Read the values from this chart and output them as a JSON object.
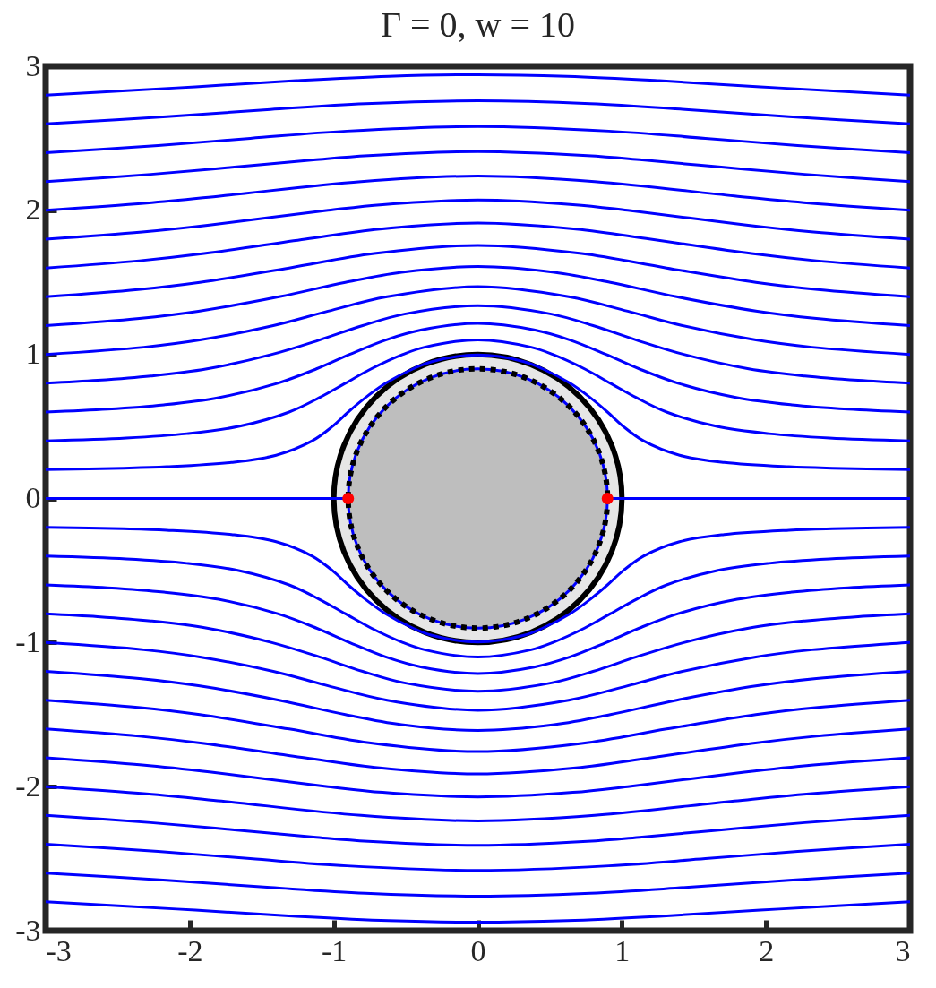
{
  "chart_data": {
    "type": "line",
    "title": "Γ = 0, w = 10",
    "xlim": [
      -3,
      3
    ],
    "ylim": [
      -3,
      3
    ],
    "xticks": [
      -3,
      -2,
      -1,
      0,
      1,
      2,
      3
    ],
    "yticks": [
      -3,
      -2,
      -1,
      0,
      1,
      2,
      3
    ],
    "grid": false,
    "line_style": "solid",
    "series": [
      {
        "color": "#0000ff",
        "x": [
          -3,
          -2.46,
          -2.16,
          -1.71,
          -1.4,
          -1.15,
          -1.01,
          -0.9,
          -0.78,
          -0.64,
          -0.45,
          -0.32,
          0,
          0.32,
          0.45,
          0.64,
          0.78,
          0.9,
          1.01,
          1.15,
          1.4,
          1.71,
          2.16,
          2.46,
          3
        ],
        "values": [
          0.2,
          0.21,
          0.22,
          0.25,
          0.3,
          0.4,
          0.5,
          0.6,
          0.7,
          0.8,
          0.9,
          0.95,
          0.996,
          0.95,
          0.9,
          0.8,
          0.7,
          0.6,
          0.5,
          0.4,
          0.3,
          0.25,
          0.22,
          0.21,
          0.2
        ]
      },
      {
        "color": "#0000ff",
        "x": [
          -3,
          -2.44,
          -2.02,
          -1.66,
          -1.31,
          -1.1,
          -0.92,
          -0.74,
          -0.52,
          -0.37,
          0,
          0.37,
          0.52,
          0.74,
          0.92,
          1.1,
          1.31,
          1.66,
          2.02,
          2.44,
          3
        ],
        "values": [
          0.4,
          0.42,
          0.45,
          0.5,
          0.6,
          0.7,
          0.8,
          0.9,
          1.0,
          1.05,
          1.101,
          1.05,
          1.0,
          0.9,
          0.8,
          0.7,
          0.6,
          0.5,
          0.45,
          0.42,
          0.4
        ]
      },
      {
        "color": "#0000ff",
        "x": [
          -3,
          -2.57,
          -2.18,
          -1.8,
          -1.39,
          -1.12,
          -0.89,
          -0.64,
          -0.39,
          0,
          0.39,
          0.64,
          0.89,
          1.12,
          1.39,
          1.8,
          2.18,
          2.57,
          3
        ],
        "values": [
          0.6,
          0.62,
          0.65,
          0.7,
          0.8,
          0.9,
          1.0,
          1.1,
          1.17,
          1.215,
          1.17,
          1.1,
          1.0,
          0.9,
          0.8,
          0.7,
          0.65,
          0.62,
          0.6
        ]
      },
      {
        "color": "#0000ff",
        "x": [
          -3,
          -2.64,
          -2.27,
          -1.88,
          -1.43,
          -1.1,
          -0.8,
          -0.51,
          0,
          0.51,
          0.8,
          1.1,
          1.43,
          1.88,
          2.27,
          2.64,
          3
        ],
        "values": [
          0.8,
          0.82,
          0.85,
          0.9,
          1.0,
          1.1,
          1.2,
          1.28,
          1.338,
          1.28,
          1.2,
          1.1,
          1.0,
          0.9,
          0.85,
          0.82,
          0.8
        ]
      },
      {
        "color": "#0000ff",
        "x": [
          -3,
          -2.32,
          -1.93,
          -1.42,
          -1.04,
          -0.63,
          0,
          0.63,
          1.04,
          1.42,
          1.93,
          2.32,
          3
        ],
        "values": [
          1.0,
          1.05,
          1.1,
          1.2,
          1.3,
          1.4,
          1.47,
          1.4,
          1.3,
          1.2,
          1.1,
          1.05,
          1.0
        ]
      },
      {
        "color": "#0000ff",
        "x": [
          -3,
          -2.35,
          -1.94,
          -1.38,
          -0.92,
          -0.53,
          0,
          0.53,
          0.92,
          1.38,
          1.94,
          2.35,
          3
        ],
        "values": [
          1.2,
          1.25,
          1.3,
          1.4,
          1.5,
          1.57,
          1.61,
          1.57,
          1.5,
          1.4,
          1.3,
          1.25,
          1.2
        ]
      },
      {
        "color": "#0000ff",
        "x": [
          -3,
          -2.36,
          -1.93,
          -1.31,
          -0.72,
          0,
          0.72,
          1.31,
          1.93,
          2.36,
          3
        ],
        "values": [
          1.4,
          1.45,
          1.5,
          1.6,
          1.7,
          1.757,
          1.7,
          1.6,
          1.5,
          1.45,
          1.4
        ]
      },
      {
        "color": "#0000ff",
        "x": [
          -3,
          -2.35,
          -1.9,
          -1.2,
          -0.68,
          0,
          0.68,
          1.2,
          1.9,
          2.35,
          3
        ],
        "values": [
          1.6,
          1.65,
          1.7,
          1.8,
          1.87,
          1.912,
          1.87,
          1.8,
          1.7,
          1.65,
          1.6
        ]
      },
      {
        "color": "#0000ff",
        "x": [
          -3,
          -2.33,
          -1.85,
          -1.04,
          -0.66,
          0,
          0.66,
          1.04,
          1.85,
          2.33,
          3
        ],
        "values": [
          1.8,
          1.85,
          1.9,
          2.0,
          2.04,
          2.072,
          2.04,
          2.0,
          1.9,
          1.85,
          1.8
        ]
      },
      {
        "color": "#0000ff",
        "x": [
          -3,
          -2.3,
          -1.78,
          -0.81,
          0,
          0.81,
          1.78,
          2.3,
          3
        ],
        "values": [
          2.0,
          2.05,
          2.1,
          2.2,
          2.238,
          2.2,
          2.1,
          2.05,
          2.0
        ]
      },
      {
        "color": "#0000ff",
        "x": [
          -3,
          -2.27,
          -1.69,
          -1.14,
          -0.76,
          0,
          0.76,
          1.14,
          1.69,
          2.27,
          3
        ],
        "values": [
          2.2,
          2.25,
          2.3,
          2.35,
          2.38,
          2.408,
          2.38,
          2.35,
          2.3,
          2.25,
          2.2
        ]
      },
      {
        "color": "#0000ff",
        "x": [
          -3,
          -2.22,
          -1.58,
          -0.91,
          0,
          0.91,
          1.58,
          2.22,
          3
        ],
        "values": [
          2.4,
          2.45,
          2.5,
          2.55,
          2.582,
          2.55,
          2.5,
          2.45,
          2.4
        ]
      },
      {
        "color": "#0000ff",
        "x": [
          -3,
          -2.16,
          -1.44,
          -0.78,
          0,
          0.78,
          1.44,
          2.16,
          3
        ],
        "values": [
          2.6,
          2.65,
          2.7,
          2.74,
          2.76,
          2.74,
          2.7,
          2.65,
          2.6
        ]
      },
      {
        "color": "#0000ff",
        "x": [
          -3,
          -2.09,
          -1.26,
          -0.62,
          0,
          0.62,
          1.26,
          2.09,
          3
        ],
        "values": [
          2.8,
          2.85,
          2.9,
          2.93,
          2.941,
          2.93,
          2.9,
          2.85,
          2.8
        ]
      },
      {
        "color": "#0000ff",
        "x": [
          -3,
          -2.46,
          -2.16,
          -1.71,
          -1.4,
          -1.15,
          -1.01,
          -0.9,
          -0.78,
          -0.64,
          -0.45,
          -0.32,
          0,
          0.32,
          0.45,
          0.64,
          0.78,
          0.9,
          1.01,
          1.15,
          1.4,
          1.71,
          2.16,
          2.46,
          3
        ],
        "values": [
          -0.2,
          -0.21,
          -0.22,
          -0.25,
          -0.3,
          -0.4,
          -0.5,
          -0.6,
          -0.7,
          -0.8,
          -0.9,
          -0.95,
          -0.996,
          -0.95,
          -0.9,
          -0.8,
          -0.7,
          -0.6,
          -0.5,
          -0.4,
          -0.3,
          -0.25,
          -0.22,
          -0.21,
          -0.2
        ]
      },
      {
        "color": "#0000ff",
        "x": [
          -3,
          -2.44,
          -2.02,
          -1.66,
          -1.31,
          -1.1,
          -0.92,
          -0.74,
          -0.52,
          -0.37,
          0,
          0.37,
          0.52,
          0.74,
          0.92,
          1.1,
          1.31,
          1.66,
          2.02,
          2.44,
          3
        ],
        "values": [
          -0.4,
          -0.42,
          -0.45,
          -0.5,
          -0.6,
          -0.7,
          -0.8,
          -0.9,
          -1.0,
          -1.05,
          -1.101,
          -1.05,
          -1.0,
          -0.9,
          -0.8,
          -0.7,
          -0.6,
          -0.5,
          -0.45,
          -0.42,
          -0.4
        ]
      },
      {
        "color": "#0000ff",
        "x": [
          -3,
          -2.57,
          -2.18,
          -1.8,
          -1.39,
          -1.12,
          -0.89,
          -0.64,
          -0.39,
          0,
          0.39,
          0.64,
          0.89,
          1.12,
          1.39,
          1.8,
          2.18,
          2.57,
          3
        ],
        "values": [
          -0.6,
          -0.62,
          -0.65,
          -0.7,
          -0.8,
          -0.9,
          -1.0,
          -1.1,
          -1.17,
          -1.215,
          -1.17,
          -1.1,
          -1.0,
          -0.9,
          -0.8,
          -0.7,
          -0.65,
          -0.62,
          -0.6
        ]
      },
      {
        "color": "#0000ff",
        "x": [
          -3,
          -2.64,
          -2.27,
          -1.88,
          -1.43,
          -1.1,
          -0.8,
          -0.51,
          0,
          0.51,
          0.8,
          1.1,
          1.43,
          1.88,
          2.27,
          2.64,
          3
        ],
        "values": [
          -0.8,
          -0.82,
          -0.85,
          -0.9,
          -1.0,
          -1.1,
          -1.2,
          -1.28,
          -1.338,
          -1.28,
          -1.2,
          -1.1,
          -1.0,
          -0.9,
          -0.85,
          -0.82,
          -0.8
        ]
      },
      {
        "color": "#0000ff",
        "x": [
          -3,
          -2.32,
          -1.93,
          -1.42,
          -1.04,
          -0.63,
          0,
          0.63,
          1.04,
          1.42,
          1.93,
          2.32,
          3
        ],
        "values": [
          -1.0,
          -1.05,
          -1.1,
          -1.2,
          -1.3,
          -1.4,
          -1.47,
          -1.4,
          -1.3,
          -1.2,
          -1.1,
          -1.05,
          -1.0
        ]
      },
      {
        "color": "#0000ff",
        "x": [
          -3,
          -2.35,
          -1.94,
          -1.38,
          -0.92,
          -0.53,
          0,
          0.53,
          0.92,
          1.38,
          1.94,
          2.35,
          3
        ],
        "values": [
          -1.2,
          -1.25,
          -1.3,
          -1.4,
          -1.5,
          -1.57,
          -1.61,
          -1.57,
          -1.5,
          -1.4,
          -1.3,
          -1.25,
          -1.2
        ]
      },
      {
        "color": "#0000ff",
        "x": [
          -3,
          -2.36,
          -1.93,
          -1.31,
          -0.72,
          0,
          0.72,
          1.31,
          1.93,
          2.36,
          3
        ],
        "values": [
          -1.4,
          -1.45,
          -1.5,
          -1.6,
          -1.7,
          -1.757,
          -1.7,
          -1.6,
          -1.5,
          -1.45,
          -1.4
        ]
      },
      {
        "color": "#0000ff",
        "x": [
          -3,
          -2.35,
          -1.9,
          -1.2,
          -0.68,
          0,
          0.68,
          1.2,
          1.9,
          2.35,
          3
        ],
        "values": [
          -1.6,
          -1.65,
          -1.7,
          -1.8,
          -1.87,
          -1.912,
          -1.87,
          -1.8,
          -1.7,
          -1.65,
          -1.6
        ]
      },
      {
        "color": "#0000ff",
        "x": [
          -3,
          -2.33,
          -1.85,
          -1.04,
          -0.66,
          0,
          0.66,
          1.04,
          1.85,
          2.33,
          3
        ],
        "values": [
          -1.8,
          -1.85,
          -1.9,
          -2.0,
          -2.04,
          -2.072,
          -2.04,
          -2.0,
          -1.9,
          -1.85,
          -1.8
        ]
      },
      {
        "color": "#0000ff",
        "x": [
          -3,
          -2.3,
          -1.78,
          -0.81,
          0,
          0.81,
          1.78,
          2.3,
          3
        ],
        "values": [
          -2.0,
          -2.05,
          -2.1,
          -2.2,
          -2.238,
          -2.2,
          -2.1,
          -2.05,
          -2.0
        ]
      },
      {
        "color": "#0000ff",
        "x": [
          -3,
          -2.27,
          -1.69,
          -1.14,
          -0.76,
          0,
          0.76,
          1.14,
          1.69,
          2.27,
          3
        ],
        "values": [
          -2.2,
          -2.25,
          -2.3,
          -2.35,
          -2.38,
          -2.408,
          -2.38,
          -2.35,
          -2.3,
          -2.25,
          -2.2
        ]
      },
      {
        "color": "#0000ff",
        "x": [
          -3,
          -2.22,
          -1.58,
          -0.91,
          0,
          0.91,
          1.58,
          2.22,
          3
        ],
        "values": [
          -2.4,
          -2.45,
          -2.5,
          -2.55,
          -2.582,
          -2.55,
          -2.5,
          -2.45,
          -2.4
        ]
      },
      {
        "color": "#0000ff",
        "x": [
          -3,
          -2.16,
          -1.44,
          -0.78,
          0,
          0.78,
          1.44,
          2.16,
          3
        ],
        "values": [
          -2.6,
          -2.65,
          -2.7,
          -2.74,
          -2.76,
          -2.74,
          -2.7,
          -2.65,
          -2.6
        ]
      },
      {
        "color": "#0000ff",
        "x": [
          -3,
          -2.09,
          -1.26,
          -0.62,
          0,
          0.62,
          1.26,
          2.09,
          3
        ],
        "values": [
          -2.8,
          -2.85,
          -2.9,
          -2.93,
          -2.941,
          -2.93,
          -2.9,
          -2.85,
          -2.8
        ]
      },
      {
        "color": "#0000ff",
        "x": [
          -3,
          -0.9,
          0,
          0.9,
          3
        ],
        "values": [
          0,
          0,
          null,
          0,
          0
        ]
      },
      {
        "type": "scatter",
        "marker": "circle",
        "color": "#ff0000",
        "x": [
          -0.9,
          0.9
        ],
        "values": [
          0,
          0
        ]
      }
    ]
  }
}
